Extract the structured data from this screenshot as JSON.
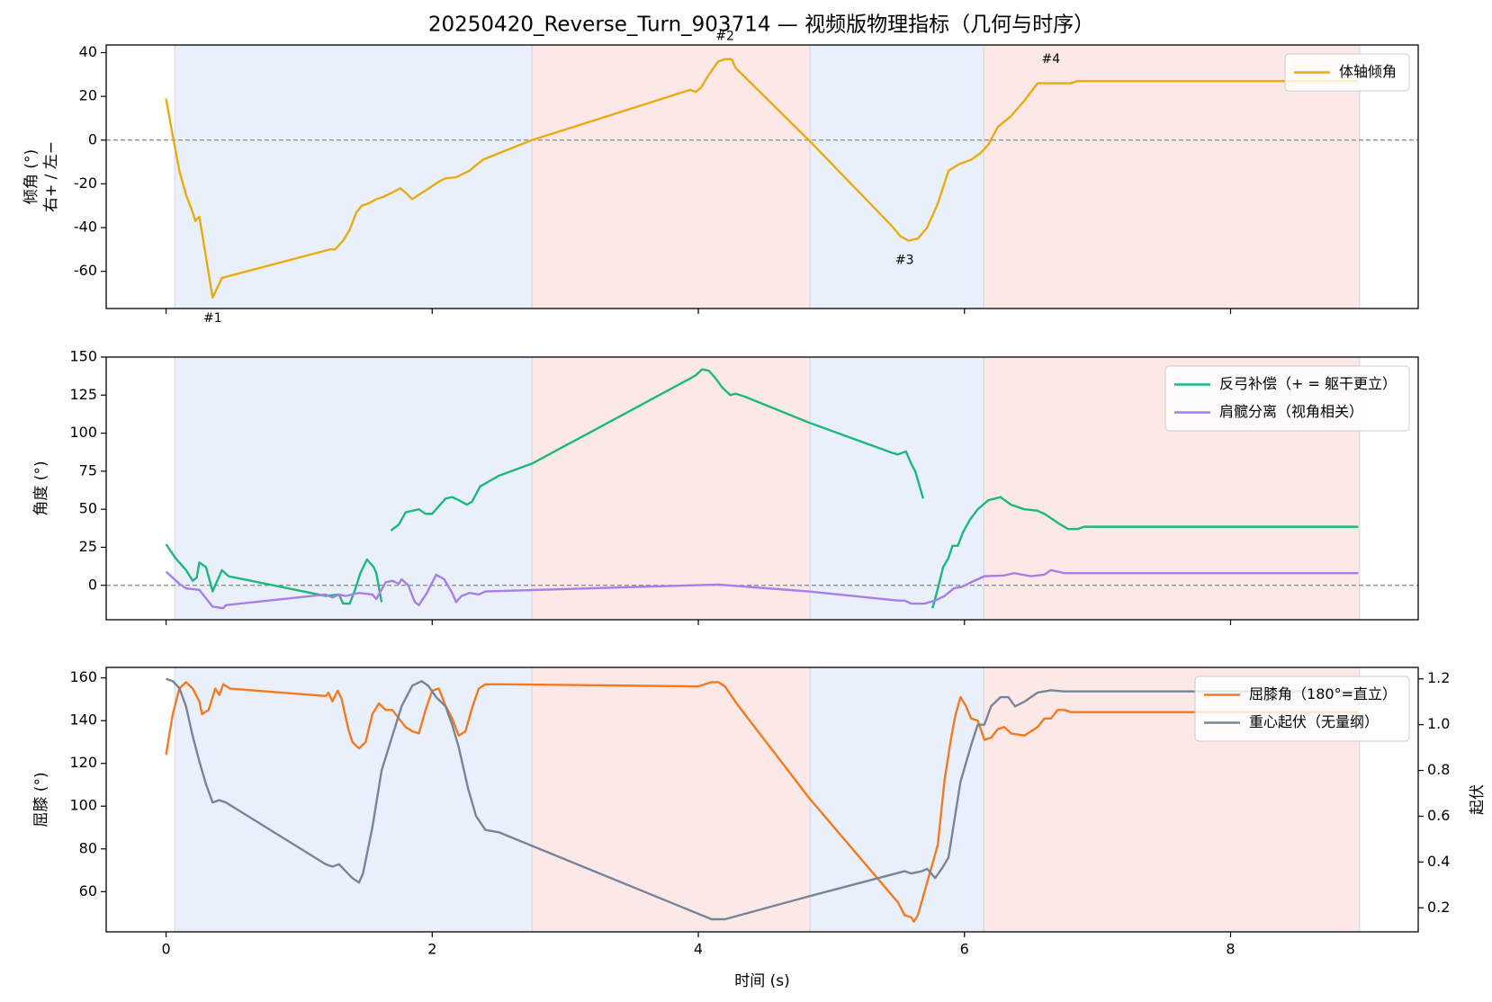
{
  "chart_data": [
    {
      "type": "line",
      "title": "20250420_Reverse_Turn_903714 — 视频版物理指标（几何与时序）",
      "ylabel": [
        "倾角 (°)",
        "右+ / 左−"
      ],
      "xlim": [
        -0.45,
        9.41
      ],
      "xticks": [
        0,
        2,
        4,
        6,
        8
      ],
      "xticklabels": false,
      "ylim": [
        -77,
        43.5
      ],
      "yticks": [
        40,
        20,
        0,
        -20,
        -40,
        -60
      ],
      "hline": 0,
      "legend": "upper right",
      "phases": [
        {
          "start": 0.065,
          "end": 2.75,
          "color": "#e9f0fb"
        },
        {
          "start": 2.75,
          "end": 4.84,
          "color": "#fce9e7"
        },
        {
          "start": 4.84,
          "end": 6.145,
          "color": "#e9f0fb"
        },
        {
          "start": 6.145,
          "end": 8.97,
          "color": "#fce9e7"
        }
      ],
      "annotations": [
        {
          "text": "#1",
          "x": 0.35,
          "y": -81.5
        },
        {
          "text": "#2",
          "x": 4.2,
          "y": 47.4
        },
        {
          "text": "#3",
          "x": 5.55,
          "y": -55
        },
        {
          "text": "#4",
          "x": 6.65,
          "y": 37
        }
      ],
      "series": [
        {
          "name": "体轴倾角",
          "color": "#e8ac10",
          "x": [
            0,
            0.05,
            0.1,
            0.15,
            0.2,
            0.22,
            0.25,
            0.35,
            0.42,
            1.23,
            1.27,
            1.33,
            1.38,
            1.43,
            1.47,
            1.52,
            1.58,
            1.63,
            1.7,
            1.76,
            1.8,
            1.85,
            1.9,
            1.95,
            2.0,
            2.05,
            2.1,
            2.18,
            2.28,
            2.38,
            2.5,
            2.75,
            3.94,
            3.98,
            4.02,
            4.08,
            4.15,
            4.2,
            4.25,
            4.28,
            4.83,
            5.45,
            5.52,
            5.58,
            5.65,
            5.72,
            5.8,
            5.88,
            5.96,
            6.05,
            6.12,
            6.18,
            6.25,
            6.35,
            6.45,
            6.5,
            6.55,
            6.6,
            6.7,
            6.8,
            6.85,
            8.96
          ],
          "values": [
            19,
            2,
            -14,
            -25,
            -33,
            -37,
            -35,
            -72,
            -63,
            -50,
            -50,
            -46,
            -41,
            -33,
            -30,
            -29,
            -27,
            -26,
            -24,
            -22,
            -24,
            -27,
            -25,
            -23,
            -21,
            -19,
            -17.5,
            -17,
            -14,
            -9,
            -6,
            0,
            23,
            22,
            24,
            30,
            36,
            37,
            37,
            33,
            0,
            -39,
            -44,
            -46,
            -45,
            -40,
            -29,
            -14,
            -11,
            -9,
            -6,
            -2,
            6,
            11,
            18,
            22,
            26,
            26,
            26,
            26,
            27,
            27
          ]
        }
      ]
    },
    {
      "type": "line",
      "ylabel": [
        "角度 (°)"
      ],
      "xlim": [
        -0.45,
        9.41
      ],
      "xticks": [
        0,
        2,
        4,
        6,
        8
      ],
      "xticklabels": false,
      "ylim": [
        -22.6,
        150
      ],
      "yticks": [
        0,
        25,
        50,
        75,
        100,
        125,
        150
      ],
      "hline": 0,
      "legend": "upper right",
      "phases": [
        {
          "start": 0.065,
          "end": 2.75,
          "color": "#e9f0fb"
        },
        {
          "start": 2.75,
          "end": 4.84,
          "color": "#fce9e7"
        },
        {
          "start": 4.84,
          "end": 6.145,
          "color": "#e9f0fb"
        },
        {
          "start": 6.145,
          "end": 8.97,
          "color": "#fce9e7"
        }
      ],
      "series": [
        {
          "name": "反弓补偿（+ = 躯干更立）",
          "color": "#1db87e",
          "x": [
            0,
            0.07,
            0.15,
            0.2,
            0.23,
            0.25,
            0.3,
            0.35,
            0.42,
            0.47,
            1.2,
            1.3,
            1.33,
            1.38,
            1.42,
            1.46,
            1.51,
            1.56,
            1.58,
            1.62,
            1.65,
            1.69,
            1.75,
            1.8,
            1.85,
            1.9,
            1.95,
            2.0,
            2.05,
            2.1,
            2.15,
            2.2,
            2.26,
            2.3,
            2.36,
            2.42,
            2.5,
            2.75,
            3.94,
            3.98,
            4.03,
            4.08,
            4.13,
            4.18,
            4.24,
            4.28,
            4.35,
            4.83,
            5.46,
            5.5,
            5.56,
            5.6,
            5.63,
            5.69,
            5.72,
            5.76,
            5.8,
            5.84,
            5.88,
            5.91,
            5.95,
            5.99,
            6.04,
            6.1,
            6.18,
            6.23,
            6.27,
            6.35,
            6.45,
            6.55,
            6.6,
            6.67,
            6.72,
            6.78,
            6.85,
            6.9,
            8.96
          ],
          "values": [
            27,
            18,
            10,
            3,
            5,
            15,
            12,
            -4,
            10,
            6,
            -7,
            -6,
            -12,
            -12,
            -3,
            8,
            17,
            12,
            8,
            -11,
            null,
            36,
            40,
            48,
            49,
            50,
            47,
            47,
            52,
            57,
            58,
            56,
            53,
            55,
            65,
            68,
            72,
            80,
            136,
            138,
            142,
            141,
            136,
            130,
            125,
            126,
            124,
            107,
            87,
            86,
            88,
            80,
            75,
            57,
            null,
            -15,
            -2,
            12,
            18,
            26,
            26,
            35,
            43,
            50,
            56,
            57,
            58,
            53,
            50,
            49,
            47,
            43,
            40,
            37,
            37,
            38.5,
            38.5
          ]
        },
        {
          "name": "肩髋分离（视角相关）",
          "color": "#a87ee8",
          "x": [
            0,
            0.05,
            0.1,
            0.15,
            0.25,
            0.35,
            0.43,
            0.45,
            1.2,
            1.25,
            1.3,
            1.35,
            1.45,
            1.55,
            1.58,
            1.65,
            1.7,
            1.75,
            1.77,
            1.82,
            1.87,
            1.9,
            1.96,
            2.03,
            2.09,
            2.15,
            2.18,
            2.22,
            2.28,
            2.35,
            2.4,
            4.15,
            4.83,
            5.5,
            5.55,
            5.6,
            5.7,
            5.78,
            5.85,
            5.92,
            5.98,
            6.05,
            6.15,
            6.3,
            6.37,
            6.5,
            6.6,
            6.65,
            6.75,
            8.96
          ],
          "values": [
            9,
            5,
            1,
            -2,
            -3,
            -14,
            -15,
            -13,
            -6,
            -8,
            -6,
            -7,
            -5,
            -6,
            -9,
            2,
            3,
            1,
            4,
            0,
            -11,
            -13,
            -5,
            7,
            4,
            -5,
            -11,
            -7,
            -5,
            -6,
            -4,
            0.5,
            -4,
            -10,
            -10,
            -12,
            -12,
            -10,
            -7,
            -2,
            -1,
            2,
            6,
            6.5,
            8,
            6,
            7,
            10,
            8,
            8
          ]
        }
      ]
    },
    {
      "type": "line",
      "ylabel": [
        "屈膝 (°)"
      ],
      "y2label": "起伏",
      "xlabel": "时间 (s)",
      "xlim": [
        -0.45,
        9.41
      ],
      "xticks": [
        0,
        2,
        4,
        6,
        8
      ],
      "xticklabels": true,
      "ylim": [
        41.2,
        164.9
      ],
      "yticks": [
        60,
        80,
        100,
        120,
        140,
        160
      ],
      "y2lim": [
        0.095,
        1.25
      ],
      "y2ticks": [
        0.2,
        0.4,
        0.6,
        0.8,
        {
          "value": 1,
          "label": "1.0"
        },
        1.2
      ],
      "legend": "upper right",
      "phases": [
        {
          "start": 0.065,
          "end": 2.75,
          "color": "#e9f0fb"
        },
        {
          "start": 2.75,
          "end": 4.84,
          "color": "#fce9e7"
        },
        {
          "start": 4.84,
          "end": 6.145,
          "color": "#e9f0fb"
        },
        {
          "start": 6.145,
          "end": 8.97,
          "color": "#fce9e7"
        }
      ],
      "series": [
        {
          "name": "屈膝角（180°=直立）",
          "color": "#f47a1f",
          "x": [
            0,
            0.05,
            0.1,
            0.15,
            0.2,
            0.25,
            0.27,
            0.32,
            0.37,
            0.4,
            0.43,
            0.48,
            1.2,
            1.22,
            1.25,
            1.29,
            1.32,
            1.37,
            1.4,
            1.45,
            1.5,
            1.55,
            1.6,
            1.65,
            1.7,
            1.75,
            1.8,
            1.85,
            1.9,
            1.95,
            2.0,
            2.05,
            2.1,
            2.15,
            2.2,
            2.25,
            2.3,
            2.35,
            2.4,
            2.45,
            2.55,
            4.0,
            4.1,
            4.15,
            4.2,
            4.3,
            4.83,
            5.5,
            5.55,
            5.6,
            5.62,
            5.65,
            5.7,
            5.8,
            5.85,
            5.9,
            5.93,
            5.97,
            6.01,
            6.05,
            6.1,
            6.15,
            6.2,
            6.25,
            6.3,
            6.35,
            6.45,
            6.5,
            6.55,
            6.6,
            6.65,
            6.7,
            6.75,
            6.8,
            8.96
          ],
          "values": [
            124,
            143,
            155,
            158,
            155,
            149,
            143,
            145,
            155,
            152,
            157,
            155,
            151.5,
            153,
            149,
            154,
            150,
            136,
            130,
            127,
            130,
            143,
            148,
            145,
            145,
            141,
            137,
            135,
            134,
            145,
            154,
            155,
            147,
            141,
            133,
            135,
            146,
            155,
            157,
            157,
            157,
            156,
            158,
            158,
            156,
            147,
            104,
            55,
            49,
            48,
            46,
            49,
            60,
            82,
            112,
            132,
            142,
            151,
            147,
            141,
            140,
            131,
            132,
            136,
            137,
            134,
            133,
            135,
            137,
            141,
            141,
            145,
            145,
            144,
            144
          ]
        },
        {
          "name": "重心起伏（无量纲）",
          "color": "#78849a",
          "axis": "y2",
          "x": [
            0,
            0.05,
            0.1,
            0.15,
            0.2,
            0.25,
            0.3,
            0.35,
            0.4,
            0.45,
            1.2,
            1.25,
            1.3,
            1.35,
            1.4,
            1.45,
            1.48,
            1.55,
            1.62,
            1.7,
            1.77,
            1.85,
            1.92,
            1.97,
            2.03,
            2.1,
            2.15,
            2.2,
            2.27,
            2.33,
            2.4,
            2.5,
            4.1,
            4.2,
            4.83,
            5.55,
            5.6,
            5.68,
            5.72,
            5.78,
            5.84,
            5.88,
            5.97,
            6.05,
            6.1,
            6.15,
            6.2,
            6.27,
            6.33,
            6.38,
            6.45,
            6.55,
            6.65,
            6.75,
            8.96
          ],
          "values": [
            1.2,
            1.19,
            1.16,
            1.08,
            0.95,
            0.84,
            0.74,
            0.66,
            0.67,
            0.66,
            0.39,
            0.38,
            0.39,
            0.36,
            0.33,
            0.31,
            0.35,
            0.55,
            0.8,
            0.95,
            1.08,
            1.17,
            1.19,
            1.17,
            1.12,
            1.08,
            1.0,
            0.9,
            0.72,
            0.6,
            0.54,
            0.53,
            0.15,
            0.15,
            0.25,
            0.36,
            0.35,
            0.36,
            0.37,
            0.33,
            0.38,
            0.42,
            0.75,
            0.91,
            1.0,
            1.0,
            1.08,
            1.12,
            1.12,
            1.08,
            1.1,
            1.14,
            1.15,
            1.145,
            1.145
          ]
        }
      ]
    }
  ]
}
